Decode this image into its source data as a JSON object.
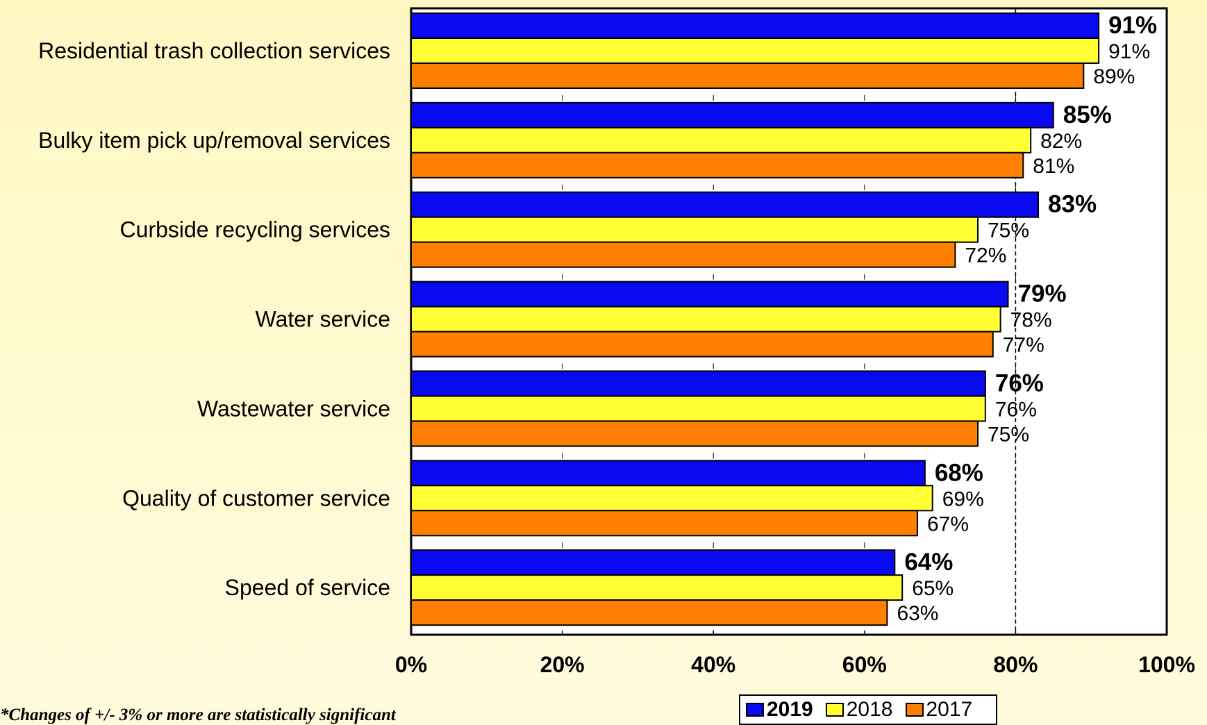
{
  "chart_data": {
    "type": "bar",
    "orientation": "horizontal",
    "categories": [
      "Residential trash collection services",
      "Bulky item pick up/removal services",
      "Curbside recycling services",
      "Water service",
      "Wastewater service",
      "Quality of customer service",
      "Speed of service"
    ],
    "series": [
      {
        "name": "2019",
        "color": "#0A0AF0",
        "bold": true,
        "values": [
          91,
          85,
          83,
          79,
          76,
          68,
          64
        ]
      },
      {
        "name": "2018",
        "color": "#FFFF33",
        "bold": false,
        "values": [
          91,
          82,
          75,
          78,
          76,
          69,
          65
        ]
      },
      {
        "name": "2017",
        "color": "#FF7F00",
        "bold": false,
        "values": [
          89,
          81,
          72,
          77,
          75,
          67,
          63
        ]
      }
    ],
    "xlim": [
      0,
      100
    ],
    "x_ticks": [
      "0%",
      "20%",
      "40%",
      "60%",
      "80%",
      "100%"
    ],
    "reference_line": 80,
    "value_suffix": "%",
    "legend_position": "bottom-right"
  },
  "footnote": "*Changes of +/- 3% or more are statistically significant"
}
